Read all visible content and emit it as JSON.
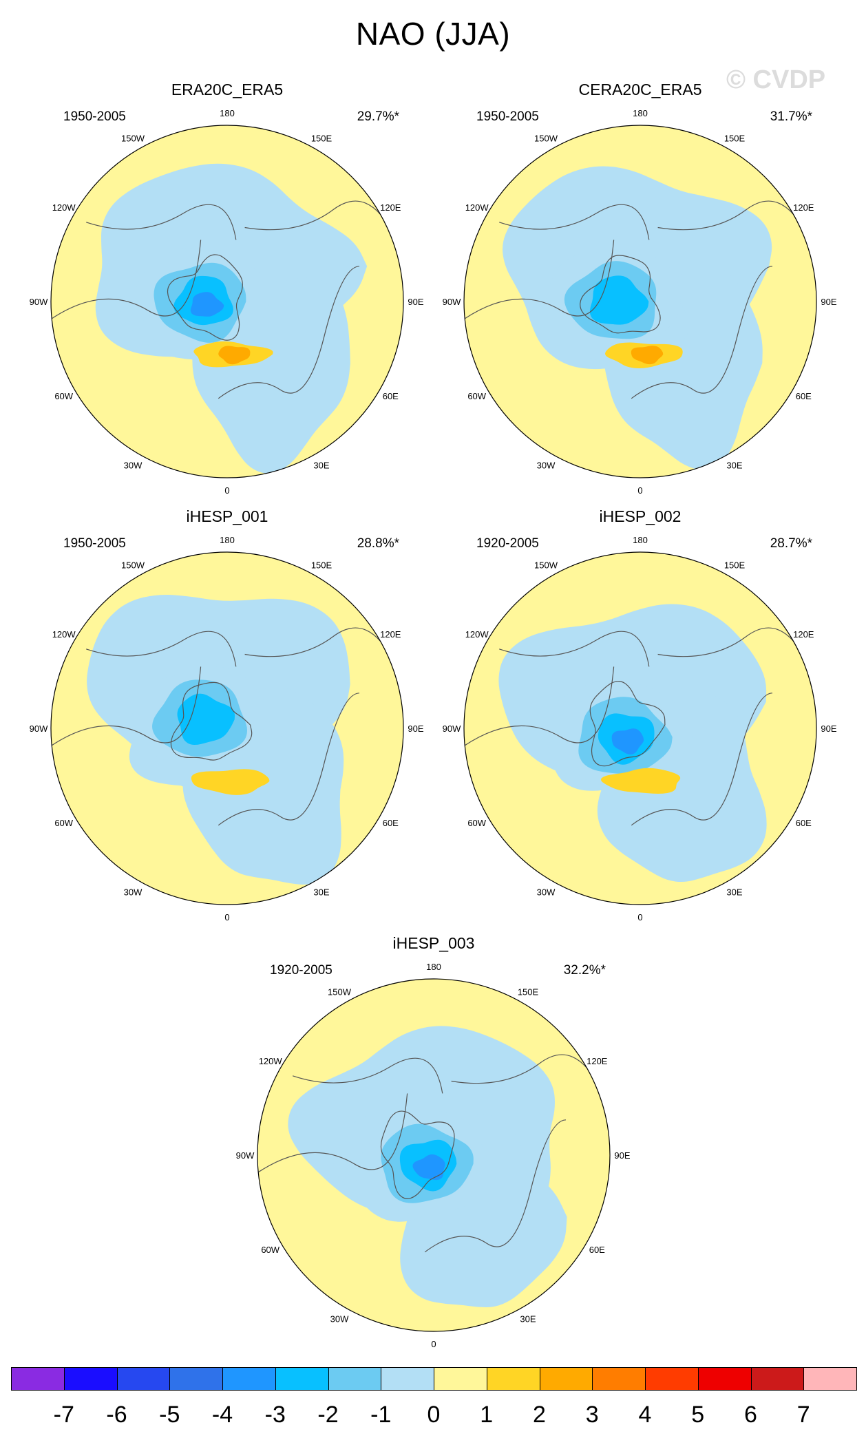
{
  "title": "NAO (JJA)",
  "watermark": "© CVDP",
  "lon_labels": {
    "180": "180",
    "150W": "150W",
    "150E": "150E",
    "120W": "120W",
    "120E": "120E",
    "90W": "90W",
    "90E": "90E",
    "60W": "60W",
    "60E": "60E",
    "30W": "30W",
    "30E": "30E",
    "0": "0"
  },
  "panels": [
    {
      "name": "ERA20C_ERA5",
      "period": "1950-2005",
      "variance": "29.7%*",
      "pole_shift": [
        -0.1,
        0.05
      ],
      "neg_strength": 3,
      "pos_strength": 2
    },
    {
      "name": "CERA20C_ERA5",
      "period": "1950-2005",
      "variance": "31.7%*",
      "pole_shift": [
        -0.1,
        0.05
      ],
      "neg_strength": 2,
      "pos_strength": 2
    },
    {
      "name": "iHESP_001",
      "period": "1950-2005",
      "variance": "28.8%*",
      "pole_shift": [
        -0.1,
        0.0
      ],
      "neg_strength": 2,
      "pos_strength": 1
    },
    {
      "name": "iHESP_002",
      "period": "1920-2005",
      "variance": "28.7%*",
      "pole_shift": [
        -0.05,
        0.1
      ],
      "neg_strength": 3,
      "pos_strength": 1
    },
    {
      "name": "iHESP_003",
      "period": "1920-2005",
      "variance": "32.2%*",
      "pole_shift": [
        0.0,
        0.1
      ],
      "neg_strength": 3,
      "pos_strength": 0
    }
  ],
  "colorbar": {
    "labels": [
      "-7",
      "-6",
      "-5",
      "-4",
      "-3",
      "-2",
      "-1",
      "0",
      "1",
      "2",
      "3",
      "4",
      "5",
      "6",
      "7"
    ],
    "colors": [
      "#8a2be2",
      "#1a0dff",
      "#2648f0",
      "#2f72ea",
      "#1f96ff",
      "#08c0ff",
      "#6ccbf2",
      "#b3dff5",
      "#fff79a",
      "#ffd525",
      "#ffaa00",
      "#ff7d00",
      "#ff3c00",
      "#ee0000",
      "#cc1a1a",
      "#ffb6b9"
    ]
  }
}
